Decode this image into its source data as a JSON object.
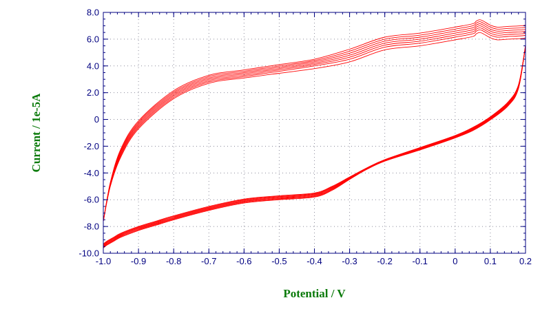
{
  "chart_data": {
    "type": "line",
    "title": "",
    "xlabel": "Potential / V",
    "ylabel": "Current / 1e-5A",
    "xlim": [
      -1.0,
      0.2
    ],
    "ylim": [
      -10.0,
      8.0
    ],
    "x_ticks": [
      {
        "value": -1.0,
        "label": "-1.0"
      },
      {
        "value": -0.9,
        "label": "-0.9"
      },
      {
        "value": -0.8,
        "label": "-0.8"
      },
      {
        "value": -0.7,
        "label": "-0.7"
      },
      {
        "value": -0.6,
        "label": "-0.6"
      },
      {
        "value": -0.5,
        "label": "-0.5"
      },
      {
        "value": -0.4,
        "label": "-0.4"
      },
      {
        "value": -0.3,
        "label": "-0.3"
      },
      {
        "value": -0.2,
        "label": "-0.2"
      },
      {
        "value": -0.1,
        "label": "-0.1"
      },
      {
        "value": 0.0,
        "label": "0"
      },
      {
        "value": 0.1,
        "label": "0.1"
      },
      {
        "value": 0.2,
        "label": "0.2"
      }
    ],
    "y_ticks": [
      {
        "value": -10.0,
        "label": "-10.0"
      },
      {
        "value": -8.0,
        "label": "-8.0"
      },
      {
        "value": -6.0,
        "label": "-6.0"
      },
      {
        "value": -4.0,
        "label": "-4.0"
      },
      {
        "value": -2.0,
        "label": "-2.0"
      },
      {
        "value": 0.0,
        "label": "0"
      },
      {
        "value": 2.0,
        "label": "2.0"
      },
      {
        "value": 4.0,
        "label": "4.0"
      },
      {
        "value": 6.0,
        "label": "6.0"
      },
      {
        "value": 8.0,
        "label": "8.0"
      }
    ],
    "grid": "dotted",
    "series_color": "#ff0000",
    "series": [
      {
        "forward": {
          "x": [
            -1.0,
            -0.99,
            -0.97,
            -0.95,
            -0.9,
            -0.85,
            -0.8,
            -0.7,
            -0.6,
            -0.5,
            -0.4,
            -0.35,
            -0.3,
            -0.25,
            -0.2,
            -0.1,
            0.0,
            0.05,
            0.1,
            0.15,
            0.18,
            0.2
          ],
          "y": [
            -9.3,
            -9.1,
            -8.8,
            -8.5,
            -8.0,
            -7.6,
            -7.2,
            -6.5,
            -5.95,
            -5.7,
            -5.5,
            -5.0,
            -4.3,
            -3.6,
            -3.0,
            -2.1,
            -1.2,
            -0.6,
            0.2,
            1.3,
            2.6,
            5.5
          ]
        },
        "reverse": {
          "x": [
            0.2,
            0.19,
            0.15,
            0.12,
            0.1,
            0.08,
            0.07,
            0.06,
            0.05,
            0.0,
            -0.1,
            -0.2,
            -0.3,
            -0.4,
            -0.5,
            -0.6,
            -0.7,
            -0.8,
            -0.9,
            -0.95,
            -0.98,
            -1.0
          ],
          "y": [
            6.1,
            6.05,
            6.0,
            5.95,
            6.1,
            6.4,
            6.5,
            6.4,
            6.2,
            5.95,
            5.5,
            5.2,
            4.3,
            3.8,
            3.45,
            3.1,
            2.7,
            1.55,
            -0.7,
            -2.8,
            -5.0,
            -7.6
          ]
        }
      },
      {
        "forward": {
          "x": [
            -1.0,
            -0.99,
            -0.97,
            -0.95,
            -0.9,
            -0.85,
            -0.8,
            -0.7,
            -0.6,
            -0.5,
            -0.4,
            -0.35,
            -0.3,
            -0.25,
            -0.2,
            -0.1,
            0.0,
            0.05,
            0.1,
            0.15,
            0.18,
            0.2
          ],
          "y": [
            -9.35,
            -9.15,
            -8.85,
            -8.55,
            -8.05,
            -7.65,
            -7.25,
            -6.55,
            -6.0,
            -5.75,
            -5.55,
            -5.05,
            -4.33,
            -3.62,
            -3.02,
            -2.13,
            -1.23,
            -0.64,
            0.16,
            1.25,
            2.55,
            5.5
          ]
        },
        "reverse": {
          "x": [
            0.2,
            0.19,
            0.15,
            0.12,
            0.1,
            0.08,
            0.07,
            0.06,
            0.05,
            0.0,
            -0.1,
            -0.2,
            -0.3,
            -0.4,
            -0.5,
            -0.6,
            -0.7,
            -0.8,
            -0.9,
            -0.95,
            -0.98,
            -1.0
          ],
          "y": [
            6.3,
            6.25,
            6.2,
            6.15,
            6.3,
            6.6,
            6.7,
            6.6,
            6.4,
            6.15,
            5.7,
            5.4,
            4.5,
            4.0,
            3.6,
            3.2,
            2.8,
            1.65,
            -0.6,
            -2.7,
            -4.95,
            -7.6
          ]
        }
      },
      {
        "forward": {
          "x": [
            -1.0,
            -0.99,
            -0.97,
            -0.95,
            -0.9,
            -0.85,
            -0.8,
            -0.7,
            -0.6,
            -0.5,
            -0.4,
            -0.35,
            -0.3,
            -0.25,
            -0.2,
            -0.1,
            0.0,
            0.05,
            0.1,
            0.15,
            0.18,
            0.2
          ],
          "y": [
            -9.4,
            -9.2,
            -8.9,
            -8.6,
            -8.1,
            -7.7,
            -7.3,
            -6.6,
            -6.05,
            -5.8,
            -5.6,
            -5.1,
            -4.36,
            -3.64,
            -3.04,
            -2.16,
            -1.26,
            -0.68,
            0.12,
            1.2,
            2.5,
            5.5
          ]
        },
        "reverse": {
          "x": [
            0.2,
            0.19,
            0.15,
            0.12,
            0.1,
            0.08,
            0.07,
            0.06,
            0.05,
            0.0,
            -0.1,
            -0.2,
            -0.3,
            -0.4,
            -0.5,
            -0.6,
            -0.7,
            -0.8,
            -0.9,
            -0.95,
            -0.98,
            -1.0
          ],
          "y": [
            6.45,
            6.4,
            6.35,
            6.3,
            6.45,
            6.75,
            6.85,
            6.75,
            6.55,
            6.3,
            5.85,
            5.55,
            4.65,
            4.1,
            3.7,
            3.3,
            2.9,
            1.75,
            -0.5,
            -2.6,
            -4.9,
            -7.6
          ]
        }
      },
      {
        "forward": {
          "x": [
            -1.0,
            -0.99,
            -0.97,
            -0.95,
            -0.9,
            -0.85,
            -0.8,
            -0.7,
            -0.6,
            -0.5,
            -0.4,
            -0.35,
            -0.3,
            -0.25,
            -0.2,
            -0.1,
            0.0,
            0.05,
            0.1,
            0.15,
            0.18,
            0.2
          ],
          "y": [
            -9.45,
            -9.25,
            -8.95,
            -8.65,
            -8.15,
            -7.75,
            -7.35,
            -6.65,
            -6.1,
            -5.85,
            -5.65,
            -5.15,
            -4.39,
            -3.66,
            -3.06,
            -2.19,
            -1.29,
            -0.72,
            0.08,
            1.15,
            2.45,
            5.5
          ]
        },
        "reverse": {
          "x": [
            0.2,
            0.19,
            0.15,
            0.12,
            0.1,
            0.08,
            0.07,
            0.06,
            0.05,
            0.0,
            -0.1,
            -0.2,
            -0.3,
            -0.4,
            -0.5,
            -0.6,
            -0.7,
            -0.8,
            -0.9,
            -0.95,
            -0.98,
            -1.0
          ],
          "y": [
            6.6,
            6.55,
            6.5,
            6.45,
            6.6,
            6.9,
            7.0,
            6.9,
            6.7,
            6.45,
            6.0,
            5.7,
            4.8,
            4.2,
            3.8,
            3.4,
            3.0,
            1.85,
            -0.4,
            -2.5,
            -4.85,
            -7.6
          ]
        }
      },
      {
        "forward": {
          "x": [
            -1.0,
            -0.99,
            -0.97,
            -0.95,
            -0.9,
            -0.85,
            -0.8,
            -0.7,
            -0.6,
            -0.5,
            -0.4,
            -0.35,
            -0.3,
            -0.25,
            -0.2,
            -0.1,
            0.0,
            0.05,
            0.1,
            0.15,
            0.18,
            0.2
          ],
          "y": [
            -9.5,
            -9.3,
            -9.0,
            -8.7,
            -8.2,
            -7.8,
            -7.4,
            -6.7,
            -6.15,
            -5.9,
            -5.7,
            -5.2,
            -4.42,
            -3.68,
            -3.08,
            -2.22,
            -1.32,
            -0.76,
            0.04,
            1.1,
            2.4,
            5.5
          ]
        },
        "reverse": {
          "x": [
            0.2,
            0.19,
            0.15,
            0.12,
            0.1,
            0.08,
            0.07,
            0.06,
            0.05,
            0.0,
            -0.1,
            -0.2,
            -0.3,
            -0.4,
            -0.5,
            -0.6,
            -0.7,
            -0.8,
            -0.9,
            -0.95,
            -0.98,
            -1.0
          ],
          "y": [
            6.75,
            6.7,
            6.65,
            6.6,
            6.75,
            7.05,
            7.15,
            7.05,
            6.85,
            6.6,
            6.15,
            5.85,
            4.95,
            4.3,
            3.9,
            3.5,
            3.1,
            1.95,
            -0.3,
            -2.4,
            -4.8,
            -7.6
          ]
        }
      },
      {
        "forward": {
          "x": [
            -1.0,
            -0.99,
            -0.97,
            -0.95,
            -0.9,
            -0.85,
            -0.8,
            -0.7,
            -0.6,
            -0.5,
            -0.4,
            -0.35,
            -0.3,
            -0.25,
            -0.2,
            -0.1,
            0.0,
            0.05,
            0.1,
            0.15,
            0.18,
            0.2
          ],
          "y": [
            -9.55,
            -9.35,
            -9.05,
            -8.75,
            -8.25,
            -7.85,
            -7.45,
            -6.75,
            -6.2,
            -5.95,
            -5.75,
            -5.25,
            -4.45,
            -3.7,
            -3.1,
            -2.25,
            -1.35,
            -0.8,
            0.0,
            1.05,
            2.35,
            5.5
          ]
        },
        "reverse": {
          "x": [
            0.2,
            0.19,
            0.15,
            0.12,
            0.1,
            0.08,
            0.07,
            0.06,
            0.05,
            0.0,
            -0.1,
            -0.2,
            -0.3,
            -0.4,
            -0.5,
            -0.6,
            -0.7,
            -0.8,
            -0.9,
            -0.95,
            -0.98,
            -1.0
          ],
          "y": [
            6.9,
            6.85,
            6.8,
            6.75,
            6.9,
            7.2,
            7.3,
            7.2,
            7.0,
            6.75,
            6.3,
            6.0,
            5.1,
            4.4,
            4.0,
            3.6,
            3.2,
            2.05,
            -0.2,
            -2.3,
            -4.75,
            -7.6
          ]
        }
      },
      {
        "forward": {
          "x": [
            -1.0,
            -0.99,
            -0.97,
            -0.95,
            -0.9,
            -0.85,
            -0.8,
            -0.7,
            -0.6,
            -0.5,
            -0.4,
            -0.35,
            -0.3,
            -0.25,
            -0.2,
            -0.1,
            0.0,
            0.05,
            0.1,
            0.15,
            0.18,
            0.2
          ],
          "y": [
            -9.6,
            -9.4,
            -9.1,
            -8.8,
            -8.3,
            -7.9,
            -7.5,
            -6.8,
            -6.25,
            -6.0,
            -5.8,
            -5.3,
            -4.48,
            -3.72,
            -3.12,
            -2.28,
            -1.38,
            -0.84,
            -0.04,
            1.0,
            2.3,
            5.5
          ]
        },
        "reverse": {
          "x": [
            0.2,
            0.19,
            0.15,
            0.12,
            0.1,
            0.08,
            0.07,
            0.06,
            0.05,
            0.0,
            -0.1,
            -0.2,
            -0.3,
            -0.4,
            -0.5,
            -0.6,
            -0.7,
            -0.8,
            -0.9,
            -0.95,
            -0.98,
            -1.0
          ],
          "y": [
            7.05,
            7.0,
            6.95,
            6.9,
            7.05,
            7.35,
            7.45,
            7.35,
            7.15,
            6.9,
            6.45,
            6.15,
            5.25,
            4.5,
            4.1,
            3.7,
            3.3,
            2.15,
            -0.1,
            -2.2,
            -4.7,
            -7.6
          ]
        }
      }
    ]
  }
}
